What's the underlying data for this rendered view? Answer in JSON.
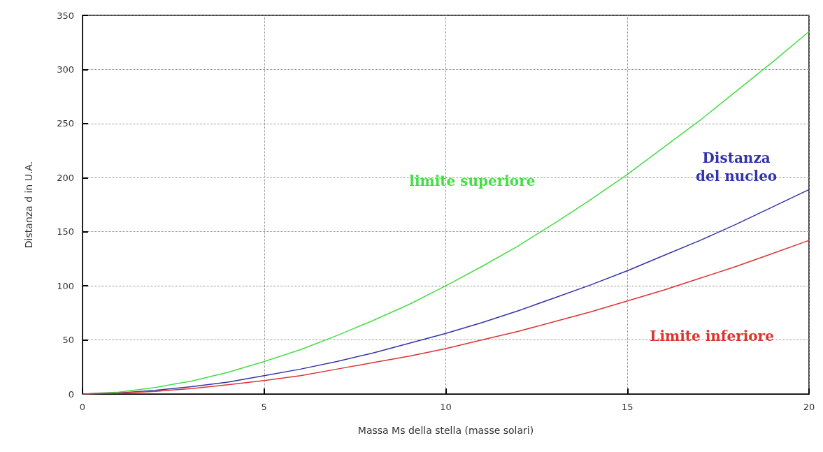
{
  "chart_data": {
    "type": "line",
    "xlabel": "Massa Ms della stella (masse solari)",
    "ylabel": "Distanza d in U.A.",
    "x": [
      0,
      1,
      2,
      3,
      4,
      5,
      6,
      7,
      8,
      9,
      10,
      11,
      12,
      13,
      14,
      15,
      16,
      17,
      18,
      19,
      20
    ],
    "series": [
      {
        "name": "limite superiore",
        "color": "#44dd44",
        "values": [
          0,
          1.8,
          6,
          12,
          20,
          30,
          41,
          54,
          68,
          83,
          100,
          118,
          137,
          158,
          180,
          203,
          228,
          253,
          280,
          307,
          335
        ]
      },
      {
        "name": "Distanza\ndel nucleo",
        "color": "#3333aa",
        "values": [
          0,
          1,
          3.4,
          6.8,
          11,
          17,
          23,
          30,
          38,
          47,
          56,
          66,
          77,
          89,
          101,
          114,
          128,
          142,
          157,
          173,
          189
        ]
      },
      {
        "name": "Limite inferiore",
        "color": "#dd3333",
        "values": [
          0,
          0.8,
          2.5,
          5,
          8.5,
          12.5,
          17,
          23,
          29,
          35,
          42,
          50,
          58,
          67,
          76,
          86,
          96,
          107,
          118,
          130,
          142
        ]
      }
    ],
    "xlim": [
      0,
      20
    ],
    "xticks": [
      0,
      5,
      10,
      15,
      20
    ],
    "ylim": [
      0,
      350
    ],
    "yticks": [
      0,
      50,
      100,
      150,
      200,
      250,
      300,
      350
    ],
    "grid": true,
    "marker": "none",
    "line_style": "solid"
  }
}
